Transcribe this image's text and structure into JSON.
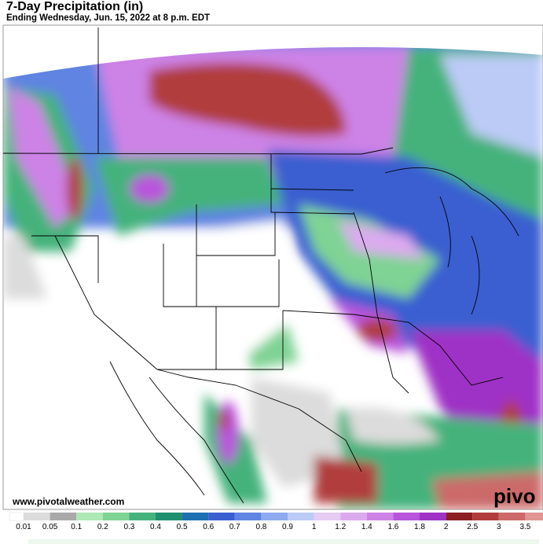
{
  "header": {
    "title": "7-Day Precipitation (in)",
    "subtitle": "Ending Wednesday, Jun. 15, 2022 at 8 p.m. EDT"
  },
  "map": {
    "watermark": "www.pivotalweather.com",
    "logo": "pivo"
  },
  "legend": {
    "labels": [
      "0.01",
      "0.05",
      "0.1",
      "0.2",
      "0.3",
      "0.4",
      "0.5",
      "0.6",
      "0.7",
      "0.8",
      "0.9",
      "1",
      "1.2",
      "1.4",
      "1.6",
      "1.8",
      "2",
      "2.5",
      "3",
      "3.5"
    ],
    "colors": [
      "#dcdcdc",
      "#a9a9a9",
      "#aee8b4",
      "#7fd394",
      "#45b27c",
      "#1f8f70",
      "#1f70b2",
      "#3a5fd0",
      "#5f84e2",
      "#8eabf0",
      "#bccbf6",
      "#e6cbf2",
      "#dbaaee",
      "#cd82e6",
      "#b954dc",
      "#9f33c6",
      "#8c1f24",
      "#b13c3c",
      "#cc6a6a",
      "#e19494"
    ]
  }
}
